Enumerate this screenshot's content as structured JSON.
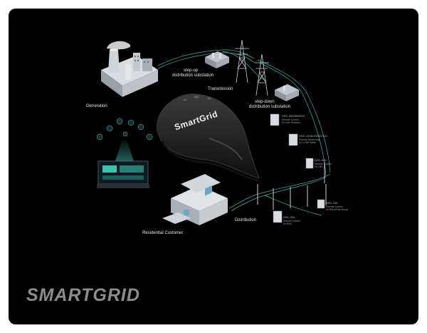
{
  "caption": "SMARTGRID",
  "hub_logo": "SmartGrid",
  "labels": {
    "generation": "Generation",
    "stepup": [
      "step-up",
      "distribution substation"
    ],
    "transmission": "Transmission",
    "stepdown": [
      "step-down",
      "distribution substation"
    ],
    "residential": "Residential Customer",
    "distribution": "Distribution"
  },
  "devices": [
    {
      "name": "DSC-500/600/610",
      "sub": [
        "Remote Control",
        "for Auto Recloser"
      ]
    },
    {
      "name": "DSC-101A/101B/101C",
      "sub": [
        "Remote Monitoring",
        "for LV/MV Meter"
      ]
    },
    {
      "name": "DSC-402",
      "sub": [
        "Remote Control",
        "for LBS"
      ]
    },
    {
      "name": "DSC-315",
      "sub": [
        "Remote Control",
        "for RMU/Pole-Mount"
      ]
    },
    {
      "name": "DSC-204",
      "sub": [
        "Remote Control",
        "for RMU"
      ]
    }
  ],
  "colors": {
    "background": "#000000",
    "frame": "#ffffff",
    "caption": "#8c8c8c",
    "grid_line": "#4fd3c4",
    "grid_line_dim": "#2a8c80",
    "hub": "#1c1c1c",
    "hub_edge": "#3a3a3a"
  }
}
